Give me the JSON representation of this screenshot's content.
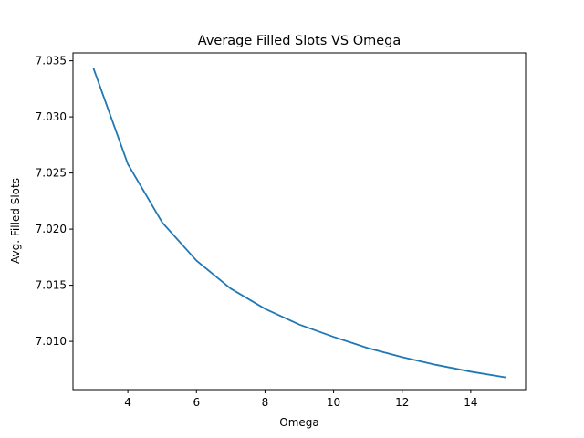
{
  "chart_data": {
    "type": "line",
    "title": "Average Filled Slots VS Omega",
    "xlabel": "Omega",
    "ylabel": "Avg. Filled Slots",
    "xlim": [
      2.4,
      15.6
    ],
    "ylim": [
      7.0057,
      7.0357
    ],
    "xticks": [
      4,
      6,
      8,
      10,
      12,
      14
    ],
    "xtick_labels": [
      "4",
      "6",
      "8",
      "10",
      "12",
      "14"
    ],
    "yticks": [
      7.01,
      7.015,
      7.02,
      7.025,
      7.03,
      7.035
    ],
    "ytick_labels": [
      "7.010",
      "7.015",
      "7.020",
      "7.025",
      "7.030",
      "7.035"
    ],
    "grid": false,
    "series": [
      {
        "name": "",
        "color": "#1f77b4",
        "x": [
          3,
          4,
          5,
          6,
          7,
          8,
          9,
          10,
          11,
          12,
          13,
          14,
          15
        ],
        "y": [
          7.0343,
          7.0258,
          7.0206,
          7.0172,
          7.0147,
          7.0129,
          7.0115,
          7.0104,
          7.0094,
          7.0086,
          7.0079,
          7.0073,
          7.0068
        ]
      }
    ]
  }
}
